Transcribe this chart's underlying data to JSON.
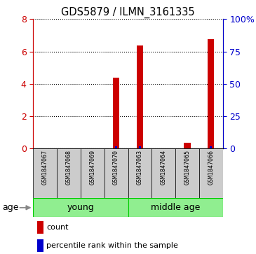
{
  "title": "GDS5879 / ILMN_3161335",
  "samples": [
    "GSM1847067",
    "GSM1847068",
    "GSM1847069",
    "GSM1847070",
    "GSM1847063",
    "GSM1847064",
    "GSM1847065",
    "GSM1847066"
  ],
  "red_counts": [
    0.0,
    0.0,
    0.0,
    4.4,
    6.35,
    0.0,
    0.35,
    6.75
  ],
  "blue_percentile": [
    0.07,
    0.0,
    0.0,
    1.58,
    2.05,
    0.0,
    0.12,
    2.05
  ],
  "ylim_left": [
    0,
    8
  ],
  "ylim_right": [
    0,
    100
  ],
  "yticks_left": [
    0,
    2,
    4,
    6,
    8
  ],
  "yticks_right": [
    0,
    25,
    50,
    75,
    100
  ],
  "ytick_labels_right": [
    "0",
    "25",
    "50",
    "75",
    "100%"
  ],
  "groups": [
    {
      "label": "young",
      "start": 0,
      "end": 4
    },
    {
      "label": "middle age",
      "start": 4,
      "end": 8
    }
  ],
  "age_label": "age",
  "red_color": "#cc0000",
  "blue_color": "#0000cc",
  "group_fill": "#90EE90",
  "group_edge": "#00cc00",
  "sample_bg_color": "#cccccc",
  "left_tick_color": "#cc0000",
  "right_tick_color": "#0000cc",
  "legend_red": "count",
  "legend_blue": "percentile rank within the sample",
  "red_bar_width": 0.28,
  "blue_bar_width": 0.1
}
